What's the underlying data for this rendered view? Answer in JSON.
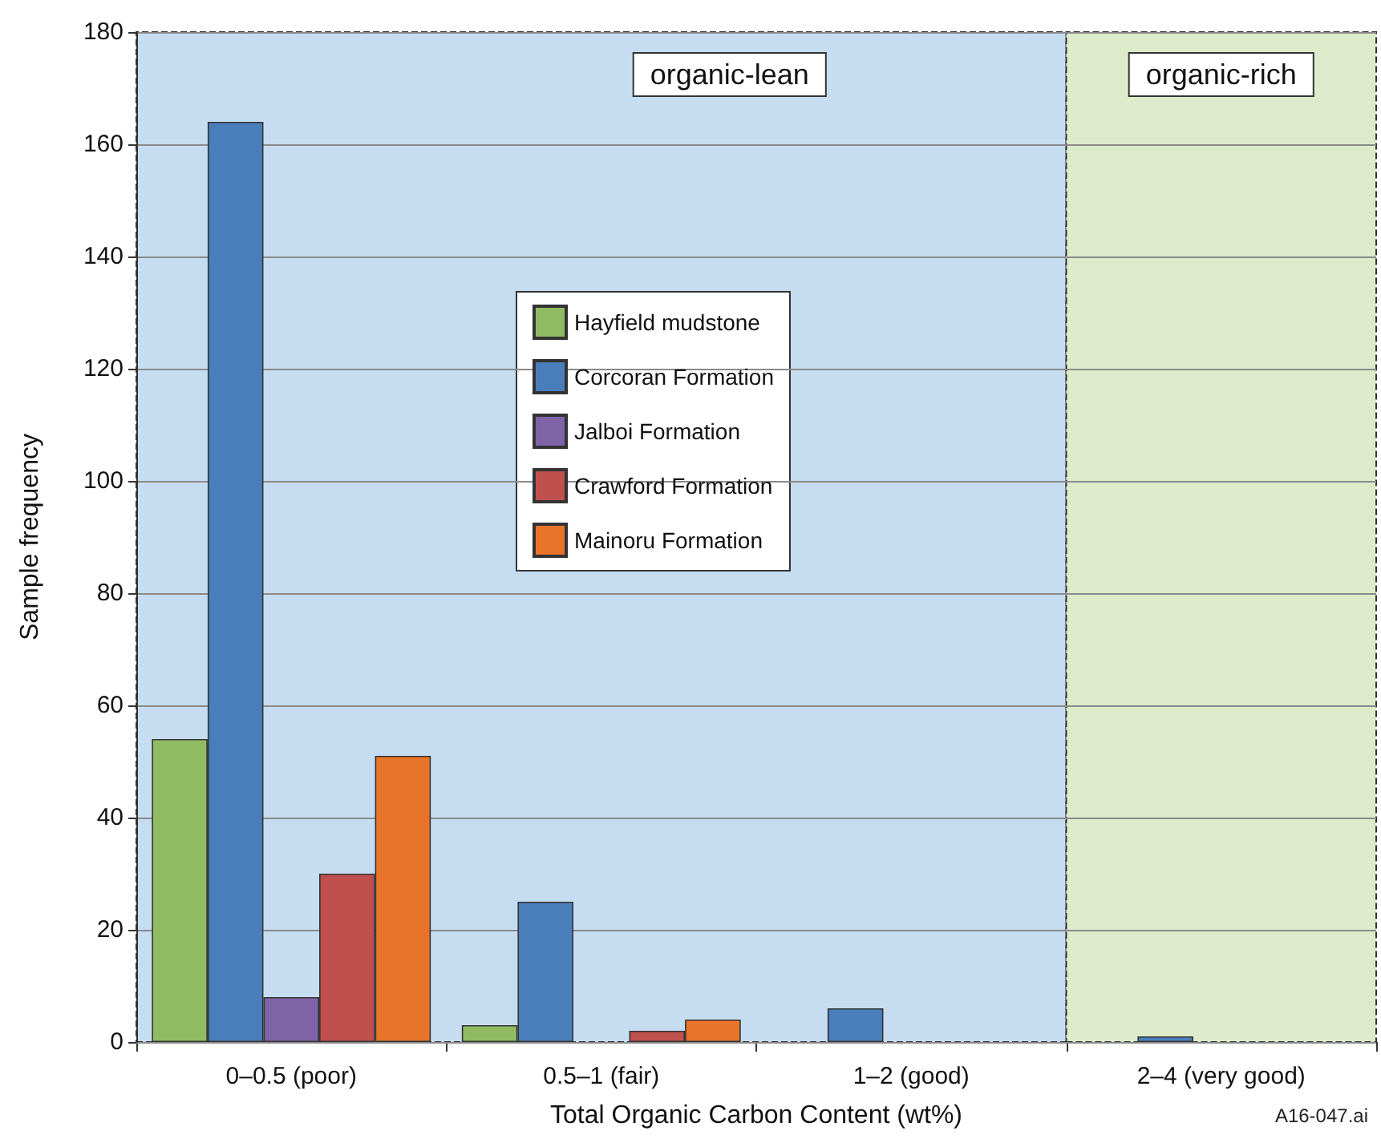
{
  "chart_data": {
    "type": "bar",
    "xlabel": "Total Organic Carbon Content (wt%)",
    "ylabel": "Sample frequency",
    "categories": [
      "0–0.5 (poor)",
      "0.5–1 (fair)",
      "1–2 (good)",
      "2–4 (very good)"
    ],
    "series": [
      {
        "name": "Hayfield mudstone",
        "color": "#8fbc62",
        "values": [
          54,
          3,
          null,
          null
        ]
      },
      {
        "name": "Corcoran Formation",
        "color": "#4a7ebb",
        "values": [
          164,
          25,
          6,
          1
        ]
      },
      {
        "name": "Jalboi Formation",
        "color": "#7f64a8",
        "values": [
          8,
          null,
          null,
          null
        ]
      },
      {
        "name": "Crawford Formation",
        "color": "#c0504d",
        "values": [
          30,
          2,
          null,
          null
        ]
      },
      {
        "name": "Mainoru Formation",
        "color": "#e8742a",
        "values": [
          51,
          4,
          null,
          null
        ]
      }
    ],
    "ylim": [
      0,
      180
    ],
    "yticks": [
      0,
      20,
      40,
      60,
      80,
      100,
      120,
      140,
      160,
      180
    ],
    "grid": "y",
    "legend": "top",
    "bands": [
      {
        "axis": "x",
        "from": "0–0.5 (poor)",
        "to": "1–2 (good)",
        "label": "organic-lean",
        "color": "#c6ddf1"
      },
      {
        "axis": "x",
        "from": "2–4 (very good)",
        "to": "2–4 (very good)",
        "label": "organic-rich",
        "color": "#deebcb"
      }
    ],
    "annotations": [
      "A16-047.ai"
    ]
  }
}
